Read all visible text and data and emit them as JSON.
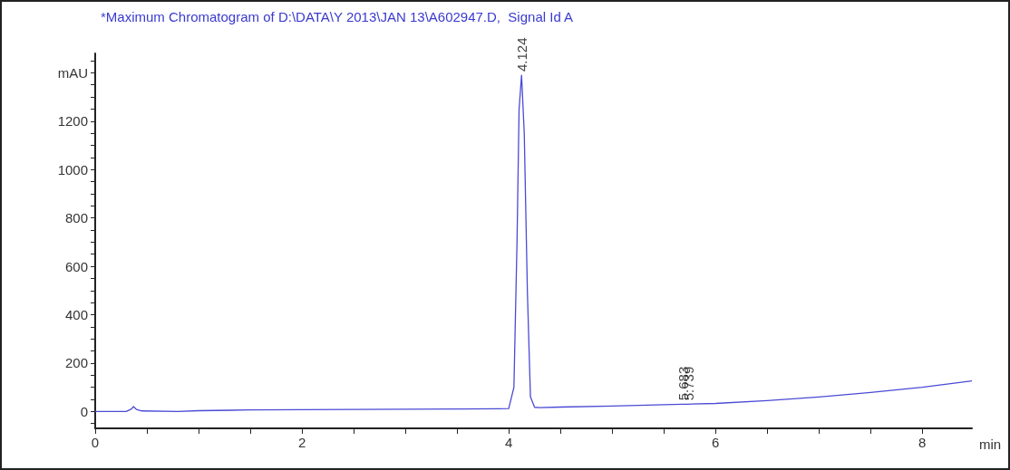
{
  "chart_data": {
    "type": "line",
    "title": "*Maximum Chromatogram of D:\\DATA\\Y 2013\\JAN 13\\A602947.D,  Signal Id A",
    "xlabel": "min",
    "x": [
      0,
      0.3,
      0.35,
      0.37,
      0.4,
      0.45,
      0.8,
      1.0,
      1.5,
      2,
      2.5,
      3,
      3.5,
      3.9,
      4.0,
      4.05,
      4.08,
      4.1,
      4.124,
      4.15,
      4.18,
      4.21,
      4.25,
      4.3,
      4.5,
      5,
      5.5,
      5.683,
      5.739,
      6,
      6.5,
      7,
      7.5,
      8,
      8.48
    ],
    "series": [
      {
        "color": "#4a4ad6",
        "values": [
          0,
          0,
          10,
          20,
          8,
          2,
          0,
          3,
          6,
          7,
          8,
          9,
          10,
          11,
          12,
          100,
          700,
          1250,
          1390,
          1150,
          500,
          60,
          17,
          16,
          18,
          22,
          28,
          30,
          30,
          33,
          45,
          60,
          78,
          100,
          126
        ]
      }
    ],
    "xlim": [
      0,
      8.48
    ],
    "xticks": [
      0,
      {
        "value": 0.5,
        "label": null
      },
      {
        "value": 1,
        "label": null
      },
      {
        "value": 1.5,
        "label": null
      },
      2,
      {
        "value": 2.5,
        "label": null
      },
      {
        "value": 3,
        "label": null
      },
      {
        "value": 3.5,
        "label": null
      },
      4,
      {
        "value": 4.5,
        "label": null
      },
      {
        "value": 5,
        "label": null
      },
      {
        "value": 5.5,
        "label": null
      },
      6,
      {
        "value": 6.5,
        "label": null
      },
      {
        "value": 7,
        "label": null
      },
      {
        "value": 7.5,
        "label": null
      },
      8
    ],
    "ylim": [
      -70,
      1480
    ],
    "yticks": [
      {
        "value": -50,
        "label": null
      },
      0,
      {
        "value": 50,
        "label": null
      },
      {
        "value": 100,
        "label": null
      },
      {
        "value": 150,
        "label": null
      },
      200,
      {
        "value": 250,
        "label": null
      },
      {
        "value": 300,
        "label": null
      },
      {
        "value": 350,
        "label": null
      },
      400,
      {
        "value": 450,
        "label": null
      },
      {
        "value": 500,
        "label": null
      },
      {
        "value": 550,
        "label": null
      },
      600,
      {
        "value": 650,
        "label": null
      },
      {
        "value": 700,
        "label": null
      },
      {
        "value": 750,
        "label": null
      },
      800,
      {
        "value": 850,
        "label": null
      },
      {
        "value": 900,
        "label": null
      },
      {
        "value": 950,
        "label": null
      },
      1000,
      {
        "value": 1050,
        "label": null
      },
      {
        "value": 1100,
        "label": null
      },
      {
        "value": 1150,
        "label": null
      },
      1200,
      {
        "value": 1250,
        "label": null
      },
      {
        "value": 1300,
        "label": null
      },
      {
        "value": 1350,
        "label": null
      },
      {
        "value": 1400,
        "label": "mAU"
      },
      {
        "value": 1450,
        "label": null
      }
    ],
    "annotations": [
      {
        "text": "4.124",
        "x": 4.124,
        "y": 1390
      },
      {
        "text": "5.683",
        "x": 5.683,
        "y": 30
      },
      {
        "text": "5.739",
        "x": 5.739,
        "y": 30
      }
    ],
    "grid": false,
    "marker": "none",
    "line_style": "solid"
  }
}
